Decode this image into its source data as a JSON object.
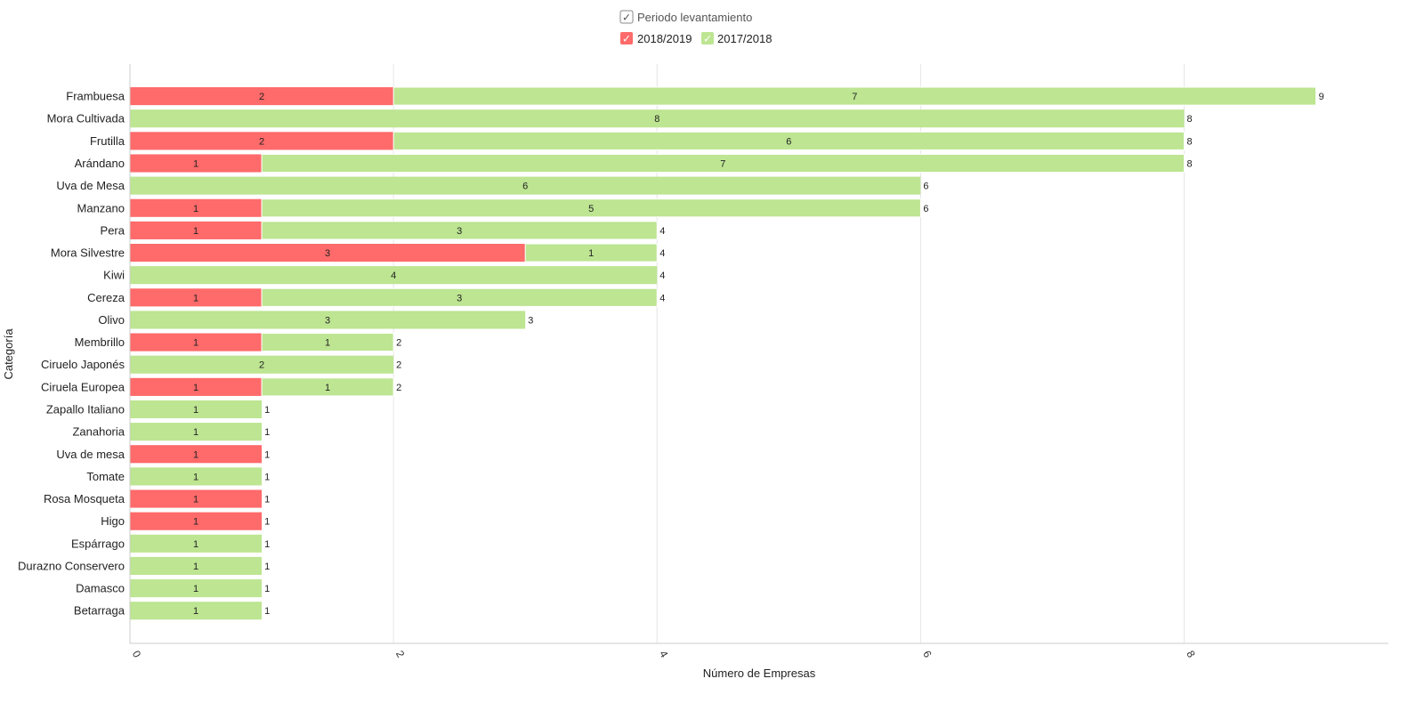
{
  "chart_data": {
    "type": "bar",
    "orientation": "horizontal",
    "stacked": true,
    "legend": {
      "title": "Periodo levantamiento",
      "placement": "top-center",
      "items": [
        {
          "label": "2018/2019",
          "color": "#ff6a6a"
        },
        {
          "label": "2017/2018",
          "color": "#bde592"
        }
      ]
    },
    "xlabel": "Número de Empresas",
    "ylabel": "Categoría",
    "xlim": [
      0,
      9.55
    ],
    "xticks": [
      "0",
      "2",
      "4",
      "6",
      "8"
    ],
    "xtick_values": [
      0,
      2,
      4,
      6,
      8
    ],
    "grid": true,
    "categories": [
      "Frambuesa",
      "Mora Cultivada",
      "Frutilla",
      "Arándano",
      "Uva de Mesa",
      "Manzano",
      "Pera",
      "Mora Silvestre",
      "Kiwi",
      "Cereza",
      "Olivo",
      "Membrillo",
      "Ciruelo Japonés",
      "Ciruela Europea",
      "Zapallo Italiano",
      "Zanahoria",
      "Uva de mesa",
      "Tomate",
      "Rosa Mosqueta",
      "Higo",
      "Espárrago",
      "Durazno Conservero",
      "Damasco",
      "Betarraga"
    ],
    "series": [
      {
        "name": "2018/2019",
        "color": "#ff6a6a",
        "values": [
          2,
          0,
          2,
          1,
          0,
          1,
          1,
          3,
          0,
          1,
          0,
          1,
          0,
          1,
          0,
          0,
          1,
          0,
          1,
          1,
          0,
          0,
          0,
          0
        ]
      },
      {
        "name": "2017/2018",
        "color": "#bde592",
        "values": [
          7,
          8,
          6,
          7,
          6,
          5,
          3,
          1,
          4,
          3,
          3,
          1,
          2,
          1,
          1,
          1,
          0,
          1,
          0,
          0,
          1,
          1,
          1,
          1
        ]
      }
    ],
    "totals": [
      9,
      8,
      8,
      8,
      6,
      6,
      4,
      4,
      4,
      4,
      3,
      2,
      2,
      2,
      1,
      1,
      1,
      1,
      1,
      1,
      1,
      1,
      1,
      1
    ]
  }
}
